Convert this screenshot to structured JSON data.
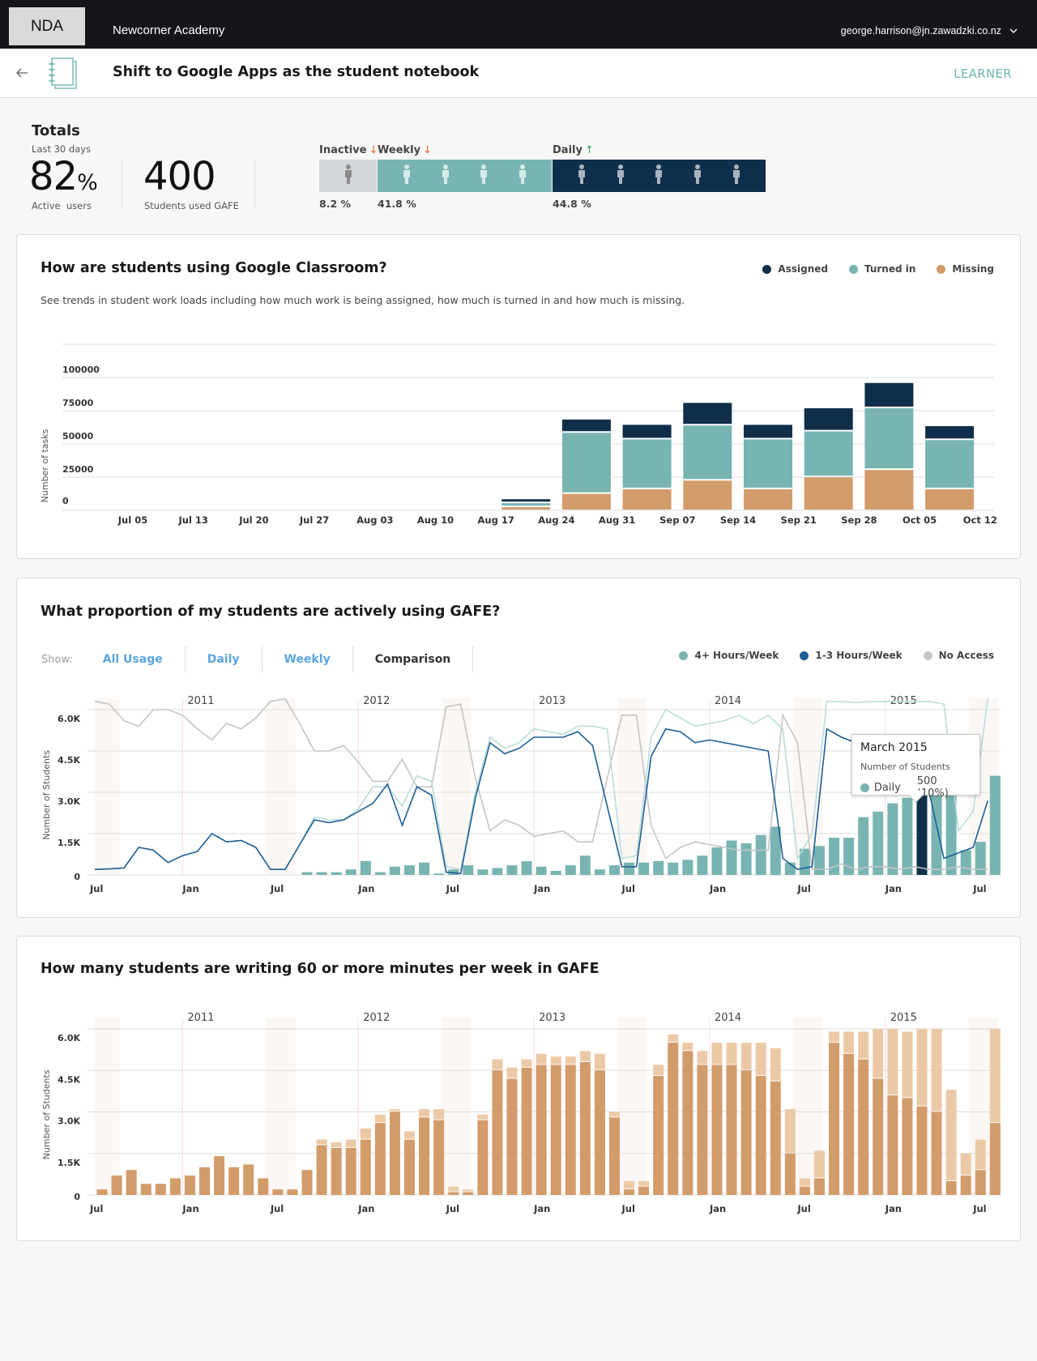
{
  "header": {
    "logo": "NDA",
    "org": "Newcorner Academy",
    "user": "george.harrison@jn.zawadzki.co.nz"
  },
  "subheader": {
    "title": "Shift to Google Apps as the student notebook",
    "role": "LEARNER"
  },
  "totals": {
    "title": "Totals",
    "period": "Last 30 days",
    "active_value": "82",
    "active_unit": "%",
    "active_label": "Active  users",
    "students_value": "400",
    "students_label": "Students used GAFE",
    "segments": [
      {
        "label": "Inactive",
        "trend": "down",
        "pct": "8.2 %",
        "icons": 1,
        "color": "#d3d6db",
        "icon_color": "#8a8a8a"
      },
      {
        "label": "Weekly",
        "trend": "down",
        "pct": "41.8 %",
        "icons": 4,
        "color": "#78b4b2",
        "icon_color": "#d6ecea"
      },
      {
        "label": "Daily",
        "trend": "up",
        "pct": "44.8 %",
        "icons": 5,
        "color": "#0f2e4a",
        "icon_color": "#a9b4bf"
      }
    ]
  },
  "colors": {
    "navy": "#0f2e4a",
    "teal": "#78b4b2",
    "tan": "#d29b6a",
    "light_tan": "#ecc9a6",
    "gray_line": "#c4c4c4",
    "blue_line": "#1e5f96",
    "light_teal_line": "#b9dcda",
    "down": "#e0622a",
    "up": "#3aa35c",
    "link": "#5aa5de"
  },
  "classroom": {
    "title": "How are students using Google Classroom?",
    "description": "See trends in student work loads including how much work is being assigned, how much is turned in and how much is missing.",
    "legend": [
      {
        "label": "Assigned",
        "color": "#0f2e4a"
      },
      {
        "label": "Turned in",
        "color": "#78b4b2"
      },
      {
        "label": "Missing",
        "color": "#d29b6a"
      }
    ],
    "chart_data": {
      "type": "bar",
      "stacked": true,
      "ylabel": "Number of tasks",
      "ylim": [
        0,
        125000
      ],
      "yticks": [
        0,
        25000,
        50000,
        75000,
        100000
      ],
      "grid": true,
      "legend": "top-right",
      "categories": [
        "Jul 05",
        "Jul 13",
        "Jul 20",
        "Jul 27",
        "Aug 03",
        "Aug 10",
        "Aug 17",
        "Aug 24",
        "Aug 31",
        "Sep 07",
        "Sep 14",
        "Sep 21",
        "Sep 28",
        "Oct 05",
        "Oct 12"
      ],
      "series": [
        {
          "name": "Missing",
          "color": "#d29b6a",
          "values": [
            0,
            0,
            0,
            0,
            0,
            0,
            3000,
            13000,
            16500,
            23000,
            16500,
            25500,
            31000,
            16500,
            0
          ]
        },
        {
          "name": "Turned in",
          "color": "#78b4b2",
          "values": [
            0,
            0,
            0,
            0,
            0,
            0,
            3000,
            46000,
            37500,
            41500,
            37500,
            34500,
            46500,
            37000,
            0
          ]
        },
        {
          "name": "Assigned",
          "color": "#0f2e4a",
          "values": [
            0,
            0,
            0,
            0,
            0,
            0,
            3000,
            10000,
            11000,
            17000,
            11000,
            17500,
            19000,
            10500,
            0
          ]
        }
      ]
    }
  },
  "proportion": {
    "title": "What proportion of my students are actively using GAFE?",
    "show_label": "Show:",
    "tabs": [
      {
        "label": "All Usage",
        "active": false
      },
      {
        "label": "Daily",
        "active": false
      },
      {
        "label": "Weekly",
        "active": false
      },
      {
        "label": "Comparison",
        "active": true
      }
    ],
    "legend": [
      {
        "label": "4+ Hours/Week",
        "color": "#78b4b2"
      },
      {
        "label": "1-3 Hours/Week",
        "color": "#1e5f96"
      },
      {
        "label": "No Access",
        "color": "#c4c4c4"
      }
    ],
    "tooltip": {
      "title": "March 2015",
      "subtitle": "Number of Students",
      "series": "Daily",
      "value": "500 (10%)",
      "month": "Mar 2015"
    },
    "chart_data": {
      "type": "bar+line",
      "ylabel": "Number of Students",
      "ylim": [
        0,
        6500
      ],
      "yticks": [
        0,
        1500,
        3000,
        4500,
        6000
      ],
      "ytick_labels": [
        "0",
        "1.5K",
        "3.0K",
        "4.5K",
        "6.0K"
      ],
      "grid": true,
      "legend": "top-right",
      "x": [
        "Jul 2010",
        "Aug 2010",
        "Sep 2010",
        "Oct 2010",
        "Nov 2010",
        "Dec 2010",
        "Jan 2011",
        "Feb 2011",
        "Mar 2011",
        "Apr 2011",
        "May 2011",
        "Jun 2011",
        "Jul 2011",
        "Aug 2011",
        "Sep 2011",
        "Oct 2011",
        "Nov 2011",
        "Dec 2011",
        "Jan 2012",
        "Feb 2012",
        "Mar 2012",
        "Apr 2012",
        "May 2012",
        "Jun 2012",
        "Jul 2012",
        "Aug 2012",
        "Sep 2012",
        "Oct 2012",
        "Nov 2012",
        "Dec 2012",
        "Jan 2013",
        "Feb 2013",
        "Mar 2013",
        "Apr 2013",
        "May 2013",
        "Jun 2013",
        "Jul 2013",
        "Aug 2013",
        "Sep 2013",
        "Oct 2013",
        "Nov 2013",
        "Dec 2013",
        "Jan 2014",
        "Feb 2014",
        "Mar 2014",
        "Apr 2014",
        "May 2014",
        "Jun 2014",
        "Jul 2014",
        "Aug 2014",
        "Sep 2014",
        "Oct 2014",
        "Nov 2014",
        "Dec 2014",
        "Jan 2015",
        "Feb 2015",
        "Mar 2015",
        "Apr 2015",
        "May 2015",
        "Jun 2015",
        "Jul 2015",
        "Aug 2015"
      ],
      "xtick_labels": [
        {
          "month": "Jul 2010",
          "label": "Jul"
        },
        {
          "month": "Jan 2011",
          "label": "Jan"
        },
        {
          "month": "Jul 2011",
          "label": "Jul"
        },
        {
          "month": "Jan 2012",
          "label": "Jan"
        },
        {
          "month": "Jul 2012",
          "label": "Jul"
        },
        {
          "month": "Jan 2013",
          "label": "Jan"
        },
        {
          "month": "Jul 2013",
          "label": "Jul"
        },
        {
          "month": "Jan 2014",
          "label": "Jan"
        },
        {
          "month": "Jul 2014",
          "label": "Jul"
        },
        {
          "month": "Jan 2015",
          "label": "Jan"
        },
        {
          "month": "Jul 2015",
          "label": "Jul"
        }
      ],
      "year_labels": [
        {
          "month": "Jan 2011",
          "label": "2011"
        },
        {
          "month": "Jan 2012",
          "label": "2012"
        },
        {
          "month": "Jan 2013",
          "label": "2013"
        },
        {
          "month": "Jan 2014",
          "label": "2014"
        },
        {
          "month": "Jan 2015",
          "label": "2015"
        }
      ],
      "bars": {
        "name": "4+ Hours/Week",
        "color": "#78b4b2",
        "highlight_color": "#0f2e4a",
        "highlight": "Mar 2015",
        "values": [
          null,
          null,
          null,
          null,
          null,
          null,
          null,
          null,
          null,
          null,
          null,
          null,
          null,
          null,
          100,
          100,
          100,
          200,
          500,
          100,
          300,
          350,
          450,
          50,
          200,
          350,
          200,
          250,
          350,
          500,
          300,
          150,
          350,
          700,
          200,
          350,
          450,
          450,
          500,
          450,
          550,
          700,
          1000,
          1250,
          1150,
          1450,
          1750,
          450,
          950,
          1050,
          1350,
          1350,
          2100,
          2300,
          2600,
          2800,
          3000,
          3300,
          3300,
          900,
          1200,
          3600
        ]
      },
      "lines": [
        {
          "name": "No Access",
          "color": "#c4c4c4",
          "values": [
            6300,
            6200,
            5600,
            5400,
            6000,
            6000,
            5800,
            5300,
            4900,
            5500,
            5300,
            5700,
            6300,
            6400,
            5500,
            4500,
            4500,
            4700,
            4100,
            3400,
            3400,
            4200,
            3200,
            3200,
            6100,
            6200,
            3500,
            1600,
            2000,
            1800,
            1400,
            1500,
            1600,
            1200,
            1200,
            3500,
            5800,
            5800,
            1800,
            600,
            1000,
            1200,
            1100,
            1000,
            900,
            900,
            900,
            5800,
            4800,
            200,
            200,
            400,
            200,
            300,
            300,
            200,
            300,
            200,
            200,
            300,
            200,
            200
          ]
        },
        {
          "color": "#b9dcda",
          "values": [
            200,
            220,
            250,
            1000,
            900,
            450,
            700,
            850,
            1500,
            1200,
            1250,
            1000,
            200,
            200,
            1100,
            2100,
            2000,
            2000,
            2400,
            3200,
            3200,
            2500,
            3600,
            3400,
            300,
            200,
            3000,
            5000,
            4600,
            4800,
            5300,
            5200,
            5100,
            5400,
            5400,
            5300,
            600,
            700,
            5000,
            6000,
            5700,
            5400,
            5500,
            5600,
            5800,
            5500,
            5800,
            5300,
            600,
            1500,
            6300,
            6300,
            6250,
            6300,
            6300,
            6300,
            6300,
            6300,
            6200,
            1600,
            2300,
            6400
          ]
        },
        {
          "name": "1-3 Hours/Week",
          "color": "#1e5f96",
          "values": [
            200,
            220,
            250,
            1000,
            900,
            450,
            700,
            850,
            1500,
            1200,
            1250,
            1000,
            200,
            200,
            1100,
            2000,
            1900,
            2000,
            2300,
            2600,
            3300,
            1800,
            3200,
            2900,
            100,
            50,
            2800,
            4800,
            4400,
            4600,
            5000,
            5000,
            5000,
            5200,
            4700,
            2500,
            300,
            300,
            4300,
            5300,
            5200,
            4800,
            4900,
            4800,
            4700,
            4600,
            4500,
            600,
            200,
            300,
            5300,
            5000,
            4800,
            4700,
            4500,
            4400,
            4200,
            3000,
            600,
            800,
            1000,
            2700
          ]
        }
      ]
    }
  },
  "writing": {
    "title": "How many students are writing 60 or more minutes per week in GAFE",
    "chart_data": {
      "type": "bar",
      "stacked": true,
      "ylabel": "Number of Students",
      "ylim": [
        0,
        6500
      ],
      "yticks": [
        0,
        1500,
        3000,
        4500,
        6000
      ],
      "ytick_labels": [
        "0",
        "1.5K",
        "3.0K",
        "4.5K",
        "6.0K"
      ],
      "grid": true,
      "series": [
        {
          "color": "#d29b6a",
          "values": [
            200,
            700,
            900,
            400,
            400,
            600,
            700,
            1000,
            1400,
            1000,
            1100,
            600,
            200,
            200,
            900,
            1800,
            1700,
            1700,
            2000,
            2600,
            3000,
            2000,
            2800,
            2700,
            100,
            100,
            2700,
            4500,
            4200,
            4600,
            4700,
            4700,
            4700,
            4800,
            4500,
            2800,
            200,
            300,
            4300,
            5500,
            5200,
            4700,
            4700,
            4700,
            4500,
            4300,
            4100,
            1500,
            300,
            600,
            5500,
            5100,
            4900,
            4200,
            3600,
            3500,
            3200,
            3000,
            500,
            700,
            900,
            2600
          ]
        },
        {
          "color": "#ecc9a6",
          "values": [
            0,
            0,
            0,
            0,
            0,
            0,
            0,
            0,
            0,
            0,
            0,
            0,
            0,
            0,
            0,
            200,
            200,
            300,
            400,
            300,
            100,
            300,
            300,
            400,
            200,
            100,
            200,
            400,
            400,
            300,
            400,
            300,
            300,
            400,
            600,
            200,
            300,
            200,
            400,
            300,
            300,
            500,
            800,
            800,
            1000,
            1200,
            1200,
            1600,
            300,
            1000,
            400,
            800,
            1000,
            1800,
            2400,
            2400,
            2800,
            3000,
            3300,
            800,
            1100,
            3400
          ]
        }
      ]
    }
  }
}
